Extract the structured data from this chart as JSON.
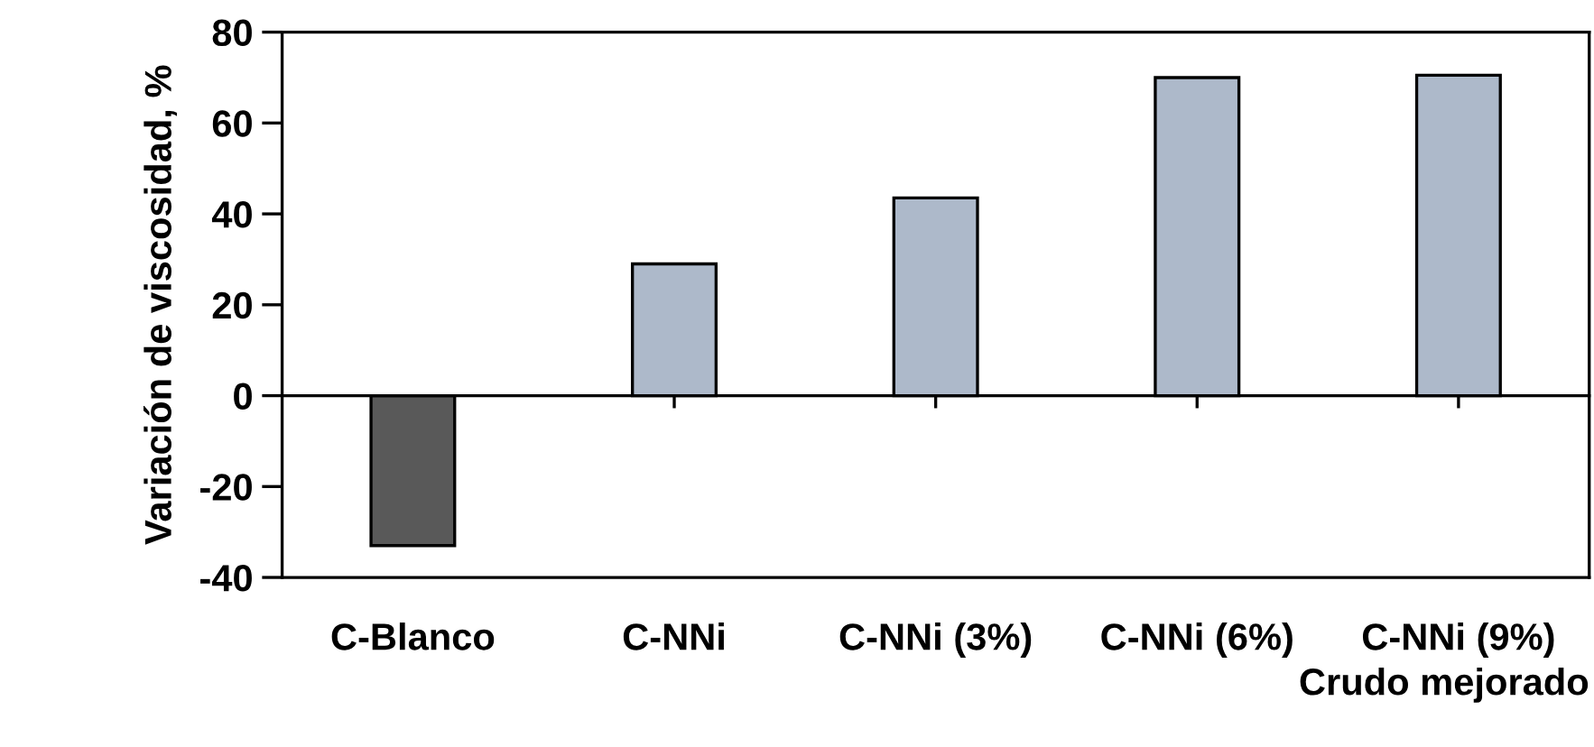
{
  "chart_data": {
    "type": "bar",
    "xlabel": "Crudo mejorado",
    "ylabel": "Variación de viscosidad, %",
    "categories": [
      "C-Blanco",
      "C-NNi",
      "C-NNi (3%)",
      "C-NNi (6%)",
      "C-NNi (9%)"
    ],
    "values": [
      -33,
      29,
      43.5,
      70,
      70.5
    ],
    "colors": [
      "#595959",
      "#adb9ca",
      "#adb9ca",
      "#adb9ca",
      "#adb9ca"
    ],
    "ylim": [
      -40,
      80
    ],
    "yticks": [
      -40,
      -20,
      0,
      20,
      40,
      60,
      80
    ]
  }
}
